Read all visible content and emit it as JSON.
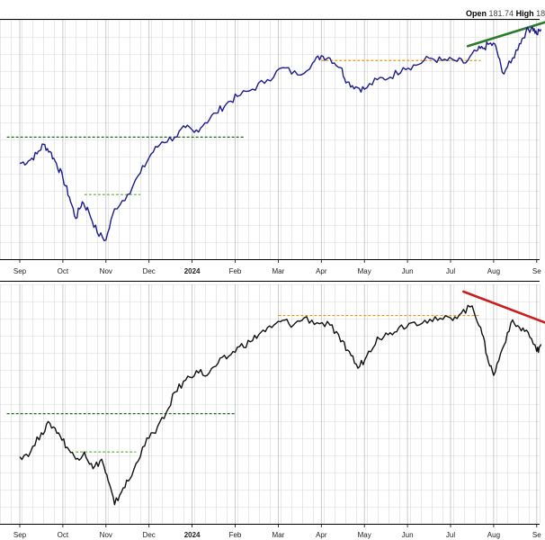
{
  "header": {
    "open_label": "Open",
    "open_value": "181.74",
    "high_label": "High",
    "high_value": "18"
  },
  "colors": {
    "top_line": "#1c1c8c",
    "bottom_line": "#111111",
    "support_dashed": "#1d6a1d",
    "minor_dashed": "#5fae3a",
    "resistance_dashed": "#e39a1a",
    "trend_up": "#2a7a2a",
    "trend_down": "#c81e1e",
    "grid": "#d9d9d9",
    "panel_border": "#000000"
  },
  "chart_data": [
    {
      "type": "line",
      "panel": "top",
      "x_ticks": [
        "Sep",
        "Oct",
        "Nov",
        "Dec",
        "2024",
        "Feb",
        "Mar",
        "Apr",
        "May",
        "Jun",
        "Jul",
        "Aug",
        "Se"
      ],
      "bold_tick": "2024",
      "ylim": [
        0,
        100
      ],
      "series": [
        {
          "x": [
            0,
            0.2,
            0.4,
            0.55,
            0.7,
            0.85,
            1.0,
            1.15,
            1.3,
            1.45,
            1.6,
            1.8,
            2.0,
            2.2,
            2.5,
            2.8,
            3.05,
            3.3,
            3.6,
            3.85,
            4.05,
            4.3,
            4.55,
            4.8,
            5.05,
            5.4,
            5.75,
            6.1,
            6.45,
            6.8,
            7.0,
            7.2,
            7.45,
            7.6,
            7.8,
            8.0,
            8.3,
            8.6,
            8.9,
            9.2,
            9.5,
            9.8,
            10.1,
            10.35,
            10.6,
            10.75,
            10.9,
            11.05,
            11.2,
            11.4,
            11.6,
            11.75,
            11.9,
            12.0,
            12.1
          ],
          "values": [
            40,
            41,
            44,
            48,
            45,
            40,
            34,
            26,
            17,
            24,
            20,
            11,
            8,
            21,
            27,
            36,
            44,
            49,
            51,
            55,
            53,
            57,
            61,
            65,
            68,
            71,
            75,
            80,
            77,
            82,
            85,
            84,
            80,
            74,
            72,
            71,
            75,
            76,
            80,
            81,
            84,
            83,
            83,
            82,
            87,
            88,
            90,
            89,
            78,
            82,
            90,
            95,
            97,
            94,
            96
          ]
        }
      ],
      "annotations": [
        {
          "kind": "hline_dashed",
          "color_key": "support_dashed",
          "x0": -0.3,
          "x1": 5.2,
          "y": 51
        },
        {
          "kind": "hline_dashed",
          "color_key": "minor_dashed",
          "x0": 1.5,
          "x1": 2.8,
          "y": 27
        },
        {
          "kind": "hline_dashed",
          "color_key": "resistance_dashed",
          "x0": 7.0,
          "x1": 10.7,
          "y": 83
        },
        {
          "kind": "trendline",
          "color_key": "trend_up",
          "x0": 10.4,
          "y0": 89,
          "x1": 12.2,
          "y1": 99
        }
      ]
    },
    {
      "type": "line",
      "panel": "bottom",
      "x_ticks": [
        "Sep",
        "Oct",
        "Nov",
        "Dec",
        "2024",
        "Feb",
        "Mar",
        "Apr",
        "May",
        "Jun",
        "Jul",
        "Aug",
        "Se"
      ],
      "bold_tick": "2024",
      "ylim": [
        0,
        100
      ],
      "series": [
        {
          "x": [
            0,
            0.25,
            0.5,
            0.7,
            0.9,
            1.1,
            1.3,
            1.5,
            1.7,
            1.9,
            2.05,
            2.2,
            2.4,
            2.6,
            2.85,
            3.1,
            3.35,
            3.6,
            3.85,
            4.1,
            4.35,
            4.6,
            4.85,
            5.1,
            5.35,
            5.6,
            5.85,
            6.1,
            6.35,
            6.6,
            6.9,
            7.2,
            7.45,
            7.65,
            7.85,
            8.05,
            8.3,
            8.55,
            8.8,
            9.1,
            9.4,
            9.7,
            10.0,
            10.25,
            10.5,
            10.7,
            10.85,
            11.0,
            11.2,
            11.4,
            11.6,
            11.8,
            12.0,
            12.1
          ],
          "values": [
            28,
            30,
            38,
            42,
            38,
            32,
            27,
            30,
            23,
            27,
            18,
            8,
            15,
            20,
            32,
            38,
            44,
            55,
            60,
            64,
            62,
            67,
            70,
            74,
            76,
            80,
            82,
            85,
            83,
            86,
            84,
            83,
            76,
            72,
            65,
            70,
            78,
            79,
            82,
            84,
            85,
            85,
            86,
            88,
            91,
            82,
            70,
            62,
            73,
            84,
            82,
            80,
            72,
            75
          ]
        }
      ],
      "annotations": [
        {
          "kind": "hline_dashed",
          "color_key": "support_dashed",
          "x0": -0.3,
          "x1": 5.0,
          "y": 46
        },
        {
          "kind": "hline_dashed",
          "color_key": "minor_dashed",
          "x0": 1.3,
          "x1": 2.7,
          "y": 30
        },
        {
          "kind": "hline_dashed",
          "color_key": "resistance_dashed",
          "x0": 6.0,
          "x1": 10.7,
          "y": 87
        },
        {
          "kind": "trendline",
          "color_key": "trend_down",
          "x0": 10.3,
          "y0": 97,
          "x1": 12.2,
          "y1": 84
        }
      ]
    }
  ]
}
